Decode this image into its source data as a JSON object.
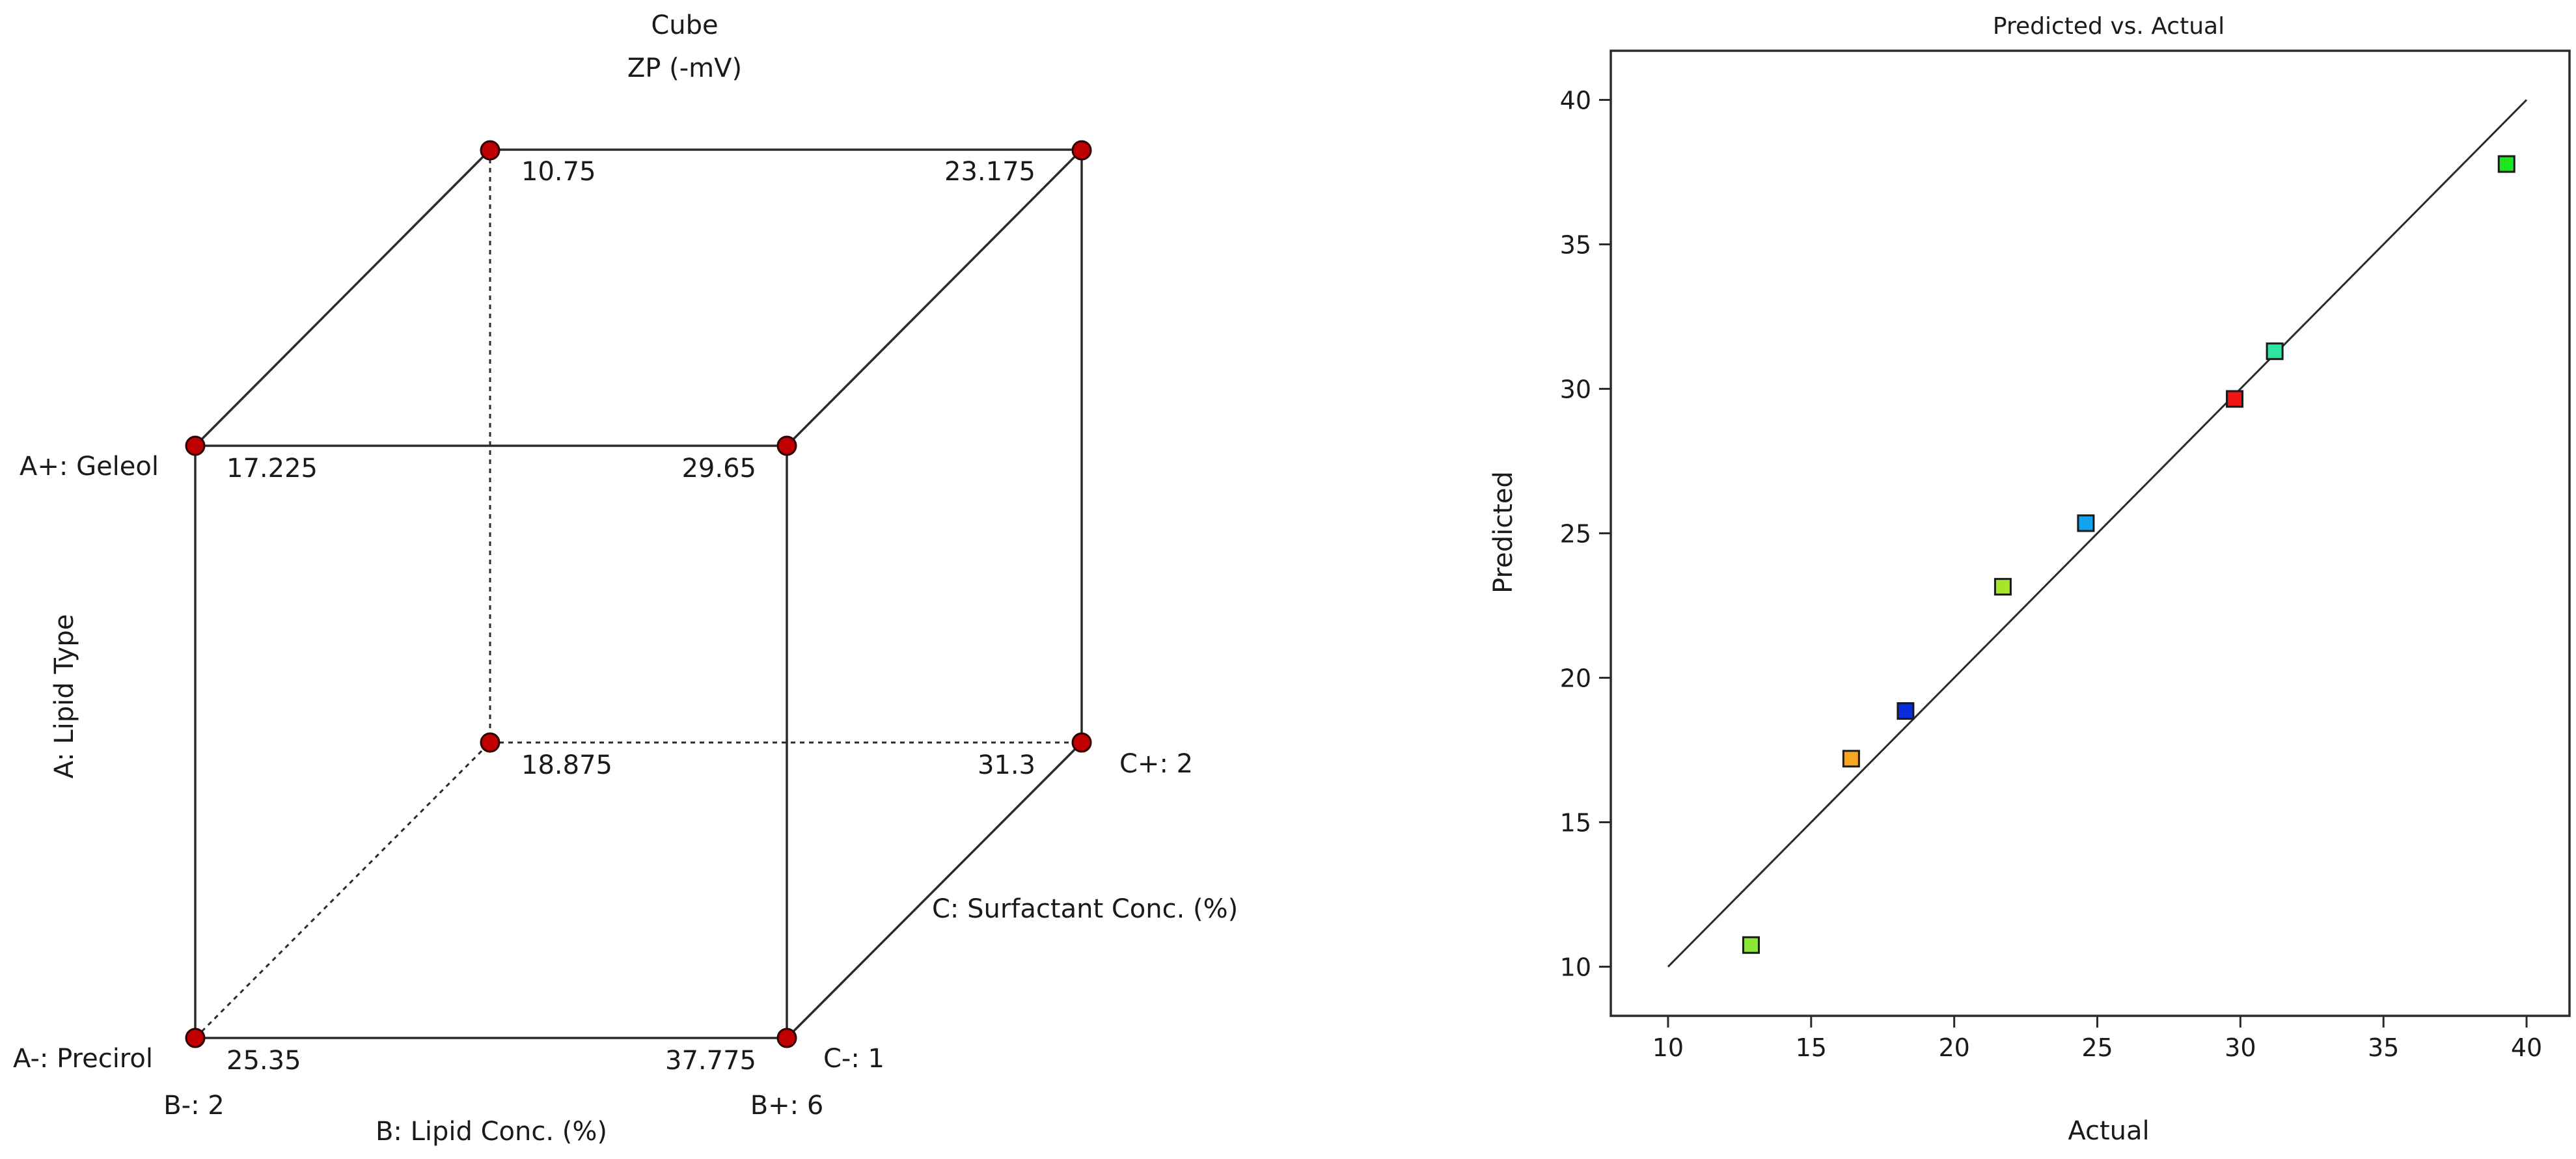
{
  "chart_data": [
    {
      "type": "cube",
      "title": "Cube",
      "subtitle": "ZP (-mV)",
      "factors": {
        "A": {
          "name": "A: Lipid Type",
          "low": "A-: Precirol",
          "high": "A+: Geleol"
        },
        "B": {
          "name": "B: Lipid Conc. (%)",
          "low": "B-: 2",
          "high": "B+: 6"
        },
        "C": {
          "name": "C: Surfactant Conc. (%)",
          "low": "C-: 1",
          "high": "C+: 2"
        }
      },
      "corners": [
        {
          "A": "-",
          "B": "-",
          "C": "-",
          "value": "25.35"
        },
        {
          "A": "-",
          "B": "+",
          "C": "-",
          "value": "37.775"
        },
        {
          "A": "+",
          "B": "-",
          "C": "-",
          "value": "17.225"
        },
        {
          "A": "+",
          "B": "+",
          "C": "-",
          "value": "29.65"
        },
        {
          "A": "-",
          "B": "-",
          "C": "+",
          "value": "18.875"
        },
        {
          "A": "-",
          "B": "+",
          "C": "+",
          "value": "31.3"
        },
        {
          "A": "+",
          "B": "-",
          "C": "+",
          "value": "10.75"
        },
        {
          "A": "+",
          "B": "+",
          "C": "+",
          "value": "23.175"
        }
      ],
      "point_color": "#c00000"
    },
    {
      "type": "scatter",
      "title": "Predicted vs. Actual",
      "xlabel": "Actual",
      "ylabel": "Predicted",
      "xlim": [
        8,
        41.5
      ],
      "ylim": [
        8.3,
        41.7
      ],
      "xticks": [
        10,
        15,
        20,
        25,
        30,
        35,
        40
      ],
      "yticks": [
        10,
        15,
        20,
        25,
        30,
        35,
        40
      ],
      "reference_line": [
        [
          10,
          10
        ],
        [
          40,
          40
        ]
      ],
      "points": [
        {
          "x": 12.9,
          "y": 10.75,
          "color": "#8ee63a"
        },
        {
          "x": 16.4,
          "y": 17.2,
          "color": "#f5a623"
        },
        {
          "x": 18.3,
          "y": 18.85,
          "color": "#0a2cdb"
        },
        {
          "x": 21.7,
          "y": 23.15,
          "color": "#a6e62a"
        },
        {
          "x": 24.6,
          "y": 25.35,
          "color": "#12a4f0"
        },
        {
          "x": 29.8,
          "y": 29.65,
          "color": "#f01414"
        },
        {
          "x": 31.2,
          "y": 31.3,
          "color": "#2ee6a0"
        },
        {
          "x": 39.3,
          "y": 37.78,
          "color": "#1ee61e"
        }
      ]
    }
  ]
}
